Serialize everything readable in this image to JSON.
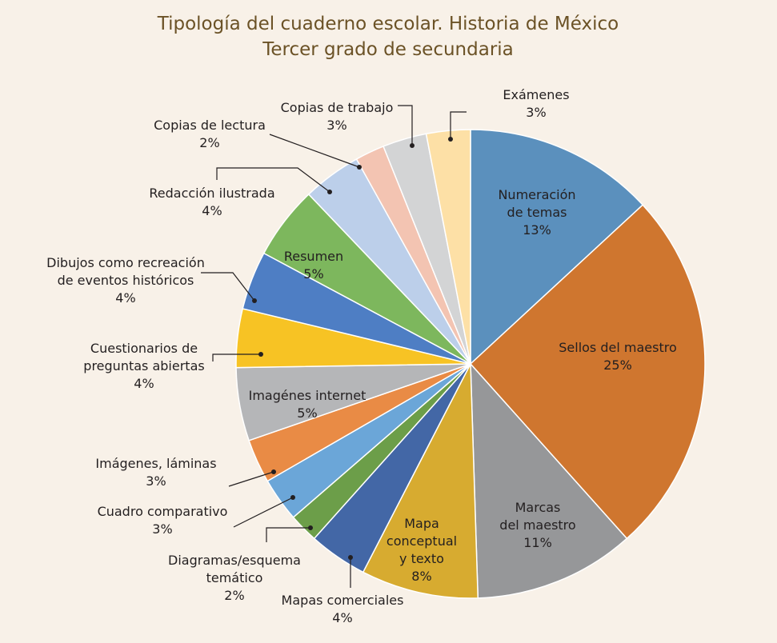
{
  "chart_data": {
    "type": "pie",
    "title": [
      "Tipología del cuaderno escolar. Historia de México",
      "Tercer grado de secundaria"
    ],
    "slices": [
      {
        "label": [
          "Numeración",
          "de temas"
        ],
        "value": 13,
        "value_label": "13%",
        "color": "#5b90bd"
      },
      {
        "label": [
          "Sellos del maestro"
        ],
        "value": 25,
        "value_label": "25%",
        "color": "#cf762f"
      },
      {
        "label": [
          "Marcas",
          "del maestro"
        ],
        "value": 11,
        "value_label": "11%",
        "color": "#969799"
      },
      {
        "label": [
          "Mapa",
          "conceptual",
          "y texto"
        ],
        "value": 8,
        "value_label": "8%",
        "color": "#d7ab30"
      },
      {
        "label": [
          "Mapas comerciales"
        ],
        "value": 4,
        "value_label": "4%",
        "color": "#4367a6"
      },
      {
        "label": [
          "Diagramas/esquema",
          "temático"
        ],
        "value": 2,
        "value_label": "2%",
        "color": "#6c9e49"
      },
      {
        "label": [
          "Cuadro comparativo"
        ],
        "value": 3,
        "value_label": "3%",
        "color": "#6ba6d8"
      },
      {
        "label": [
          "Imágenes, láminas"
        ],
        "value": 3,
        "value_label": "3%",
        "color": "#e98b45"
      },
      {
        "label": [
          "Imagénes internet"
        ],
        "value": 5,
        "value_label": "5%",
        "color": "#b5b6b8"
      },
      {
        "label": [
          "Cuestionarios de",
          "preguntas abiertas"
        ],
        "value": 4,
        "value_label": "4%",
        "color": "#f7c324"
      },
      {
        "label": [
          "Dibujos como recreación",
          "de eventos históricos"
        ],
        "value": 4,
        "value_label": "4%",
        "color": "#4e7ec4"
      },
      {
        "label": [
          "Resumen"
        ],
        "value": 5,
        "value_label": "5%",
        "color": "#7db75d"
      },
      {
        "label": [
          "Redacción ilustrada"
        ],
        "value": 4,
        "value_label": "4%",
        "color": "#bccfea"
      },
      {
        "label": [
          "Copias de lectura"
        ],
        "value": 2,
        "value_label": "2%",
        "color": "#f3c4b2"
      },
      {
        "label": [
          "Copias de trabajo"
        ],
        "value": 3,
        "value_label": "3%",
        "color": "#d3d4d5"
      },
      {
        "label": [
          "Exámenes"
        ],
        "value": 3,
        "value_label": "3%",
        "color": "#fde0a6"
      }
    ]
  }
}
